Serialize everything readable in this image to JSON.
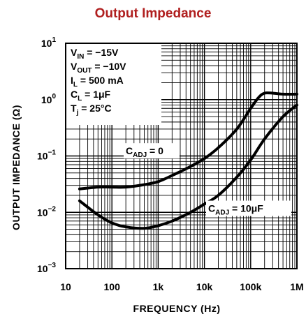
{
  "chart_data": {
    "type": "line",
    "title": "Output Impedance",
    "xlabel": "FREQUENCY (Hz)",
    "ylabel": "OUTPUT IMPEDANCE (Ω)",
    "x_scale": "log",
    "y_scale": "log",
    "xlim": [
      10,
      1000000
    ],
    "ylim": [
      0.001,
      10
    ],
    "grid": true,
    "x_ticks": [
      "10",
      "100",
      "1k",
      "10k",
      "100k",
      "1M"
    ],
    "y_ticks": [
      {
        "base": "10",
        "exp": "1"
      },
      {
        "base": "10",
        "exp": "0"
      },
      {
        "base": "10",
        "exp": "−1"
      },
      {
        "base": "10",
        "exp": "−2"
      },
      {
        "base": "10",
        "exp": "−3"
      }
    ],
    "conditions": [
      {
        "sym": "V",
        "sub": "IN",
        "rest": " = −15V"
      },
      {
        "sym": "V",
        "sub": "OUT",
        "rest": " = −10V"
      },
      {
        "sym": "I",
        "sub": "L",
        "rest": " = 500 mA"
      },
      {
        "sym": "C",
        "sub": "L",
        "rest": " = 1μF"
      },
      {
        "sym": "T",
        "sub": "j",
        "rest": " = 25°C"
      }
    ],
    "series": [
      {
        "name": "C_ADJ = 0",
        "label": {
          "sym": "C",
          "sub": "ADJ",
          "rest": " = 0"
        },
        "x": [
          20,
          50,
          100,
          200,
          500,
          1000,
          2000,
          5000,
          10000,
          20000,
          50000,
          100000,
          150000,
          200000,
          300000,
          500000,
          1000000
        ],
        "y": [
          0.026,
          0.028,
          0.028,
          0.028,
          0.031,
          0.035,
          0.045,
          0.065,
          0.09,
          0.14,
          0.3,
          0.7,
          1.1,
          1.3,
          1.3,
          1.25,
          1.25
        ]
      },
      {
        "name": "C_ADJ = 10μF",
        "label": {
          "sym": "C",
          "sub": "ADJ",
          "rest": " = 10μF"
        },
        "x": [
          20,
          50,
          100,
          200,
          500,
          1000,
          2000,
          5000,
          10000,
          20000,
          50000,
          100000,
          200000,
          500000,
          1000000
        ],
        "y": [
          0.016,
          0.009,
          0.0065,
          0.0055,
          0.0052,
          0.0058,
          0.007,
          0.01,
          0.014,
          0.02,
          0.042,
          0.085,
          0.2,
          0.5,
          0.8
        ]
      }
    ]
  }
}
